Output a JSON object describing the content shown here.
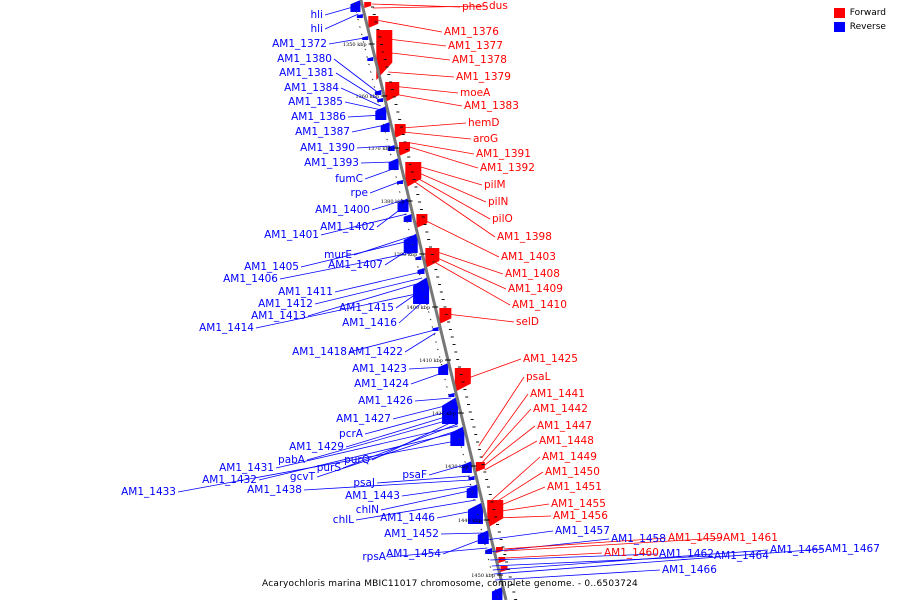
{
  "legend": {
    "forward_label": "Forward",
    "reverse_label": "Reverse",
    "forward_color": "#ff0000",
    "reverse_color": "#0000ff"
  },
  "caption": "Acaryochloris marina MBIC11017 chromosome, complete genome. - 0..6503724",
  "ticks": [
    "1350 kbp",
    "1360 kbp",
    "1370 kbp",
    "1380 kbp",
    "1390 kbp",
    "1400 kbp",
    "1410 kbp",
    "1420 kbp",
    "1430 kbp",
    "1440 kbp",
    "1450 kbp"
  ],
  "reverse_genes": [
    "hli",
    "hli",
    "AM1_1372",
    "AM1_1380",
    "AM1_1381",
    "AM1_1384",
    "AM1_1385",
    "AM1_1386",
    "AM1_1387",
    "AM1_1390",
    "AM1_1393",
    "fumC",
    "rpe",
    "AM1_1400",
    "AM1_1402",
    "AM1_1401",
    "murE",
    "AM1_1405",
    "AM1_1407",
    "AM1_1406",
    "AM1_1411",
    "AM1_1412",
    "AM1_1413",
    "AM1_1415",
    "AM1_1414",
    "AM1_1416",
    "AM1_1418",
    "AM1_1422",
    "AM1_1423",
    "AM1_1424",
    "AM1_1426",
    "AM1_1427",
    "pcrA",
    "AM1_1429",
    "pabA",
    "purQ",
    "purS",
    "AM1_1431",
    "gcvT",
    "AM1_1432",
    "psaF",
    "psaJ",
    "AM1_1433",
    "AM1_1438",
    "AM1_1443",
    "chlN",
    "chlL",
    "AM1_1446",
    "AM1_1452",
    "AM1_1454",
    "rpsA",
    "AM1_1457",
    "AM1_1458",
    "AM1_1462",
    "AM1_1464",
    "AM1_1465",
    "AM1_1467",
    "AM1_1466"
  ],
  "forward_genes": [
    "pheS",
    "dus",
    "AM1_1376",
    "AM1_1377",
    "AM1_1378",
    "AM1_1379",
    "moeA",
    "AM1_1383",
    "hemD",
    "aroG",
    "AM1_1391",
    "AM1_1392",
    "pilM",
    "pilN",
    "pilO",
    "AM1_1398",
    "AM1_1403",
    "AM1_1408",
    "AM1_1409",
    "AM1_1410",
    "selD",
    "AM1_1425",
    "psaL",
    "AM1_1441",
    "AM1_1442",
    "AM1_1447",
    "AM1_1448",
    "AM1_1449",
    "AM1_1450",
    "AM1_1451",
    "AM1_1455",
    "AM1_1456",
    "AM1_1459",
    "AM1_1461",
    "AM1_1460"
  ]
}
